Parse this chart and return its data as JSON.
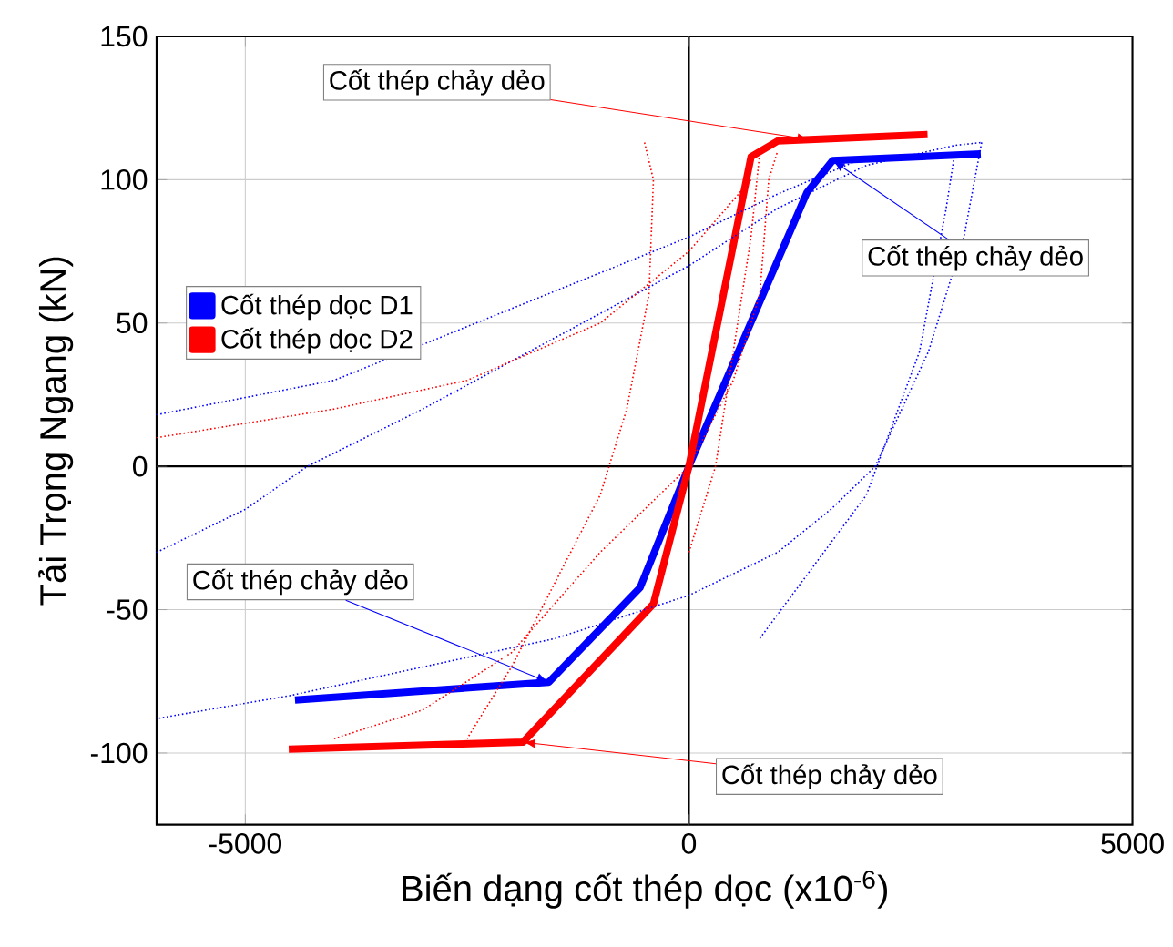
{
  "chart_data": {
    "type": "line",
    "xlabel": "Biến dạng cốt thép dọc (x10$^{-6}$)",
    "ylabel": "Tải Trọng Ngang (kN)",
    "xlim": [
      -6000,
      5000
    ],
    "ylim": [
      -125,
      150
    ],
    "xticks": [
      -5000,
      0,
      5000
    ],
    "yticks": [
      -100,
      -50,
      0,
      50,
      100,
      150
    ],
    "grid": true,
    "legend": "left",
    "marker": "none",
    "series": [
      {
        "name": "Cốt thép dọc D1",
        "color": "#0000ff",
        "line_style": "solid",
        "x": [
          -4440,
          -1580,
          -550,
          0,
          1330,
          1620,
          3290
        ],
        "values": [
          -81.5,
          -75.3,
          -42.3,
          0,
          95.5,
          106.7,
          109
        ]
      },
      {
        "name": "Cốt thép dọc D2",
        "color": "#ff0000",
        "line_style": "solid",
        "x": [
          -4510,
          -1870,
          -400,
          0,
          700,
          1000,
          2690
        ],
        "values": [
          -98.7,
          -96.2,
          -48,
          0,
          108,
          113.5,
          115.8
        ]
      },
      {
        "color": "#0000ff",
        "line_style": "dotted",
        "x": [
          3300,
          3100,
          2700,
          2100,
          1600,
          1000,
          0,
          -1500,
          -3000,
          -4500,
          -6000
        ],
        "values": [
          113,
          80,
          40,
          0,
          -15,
          -30,
          -45,
          -60,
          -70,
          -80,
          -88
        ]
      },
      {
        "color": "#0000ff",
        "line_style": "dotted",
        "x": [
          -6000,
          -5000,
          -4300,
          -3000,
          -1500,
          0,
          1000,
          2000,
          3000,
          3300
        ],
        "values": [
          -30,
          -15,
          0,
          20,
          45,
          70,
          90,
          105,
          112,
          113
        ]
      },
      {
        "color": "#0000ff",
        "line_style": "dotted",
        "x": [
          -6000,
          -4000,
          -2000,
          0,
          1000,
          2000
        ],
        "values": [
          18,
          30,
          55,
          80,
          95,
          108
        ]
      },
      {
        "color": "#0000ff",
        "line_style": "dotted",
        "x": [
          800,
          1400,
          2000,
          2600,
          2900,
          3000
        ],
        "values": [
          -60,
          -35,
          -10,
          40,
          90,
          110
        ]
      },
      {
        "color": "#ff0000",
        "line_style": "dotted",
        "x": [
          -500,
          -400,
          -450,
          -700,
          -1000,
          -1500,
          -2000,
          -2500
        ],
        "values": [
          113,
          100,
          60,
          20,
          -10,
          -40,
          -70,
          -95
        ]
      },
      {
        "color": "#ff0000",
        "line_style": "dotted",
        "x": [
          -4000,
          -3000,
          -2000,
          -1000,
          0,
          500,
          800,
          900,
          1000
        ],
        "values": [
          -95,
          -85,
          -65,
          -30,
          0,
          30,
          60,
          100,
          110
        ]
      },
      {
        "color": "#ff0000",
        "line_style": "dotted",
        "x": [
          -6000,
          -4000,
          -2500,
          -1000,
          0,
          700
        ],
        "values": [
          10,
          20,
          30,
          50,
          75,
          100
        ]
      },
      {
        "color": "#ff0000",
        "line_style": "dotted",
        "x": [
          0,
          300,
          500,
          700,
          800
        ],
        "values": [
          -30,
          0,
          40,
          80,
          110
        ]
      }
    ],
    "annotations": [
      {
        "text": "Cốt thép chảy dẻo",
        "x": 1360,
        "y": 114
      },
      {
        "text": "Cốt thép chảy dẻo",
        "x": 1620,
        "y": 106.7
      },
      {
        "text": "Cốt thép chảy dẻo",
        "x": -1580,
        "y": -75.3
      },
      {
        "text": "Cốt thép chảy dẻo",
        "x": -1870,
        "y": -96.2
      }
    ]
  }
}
